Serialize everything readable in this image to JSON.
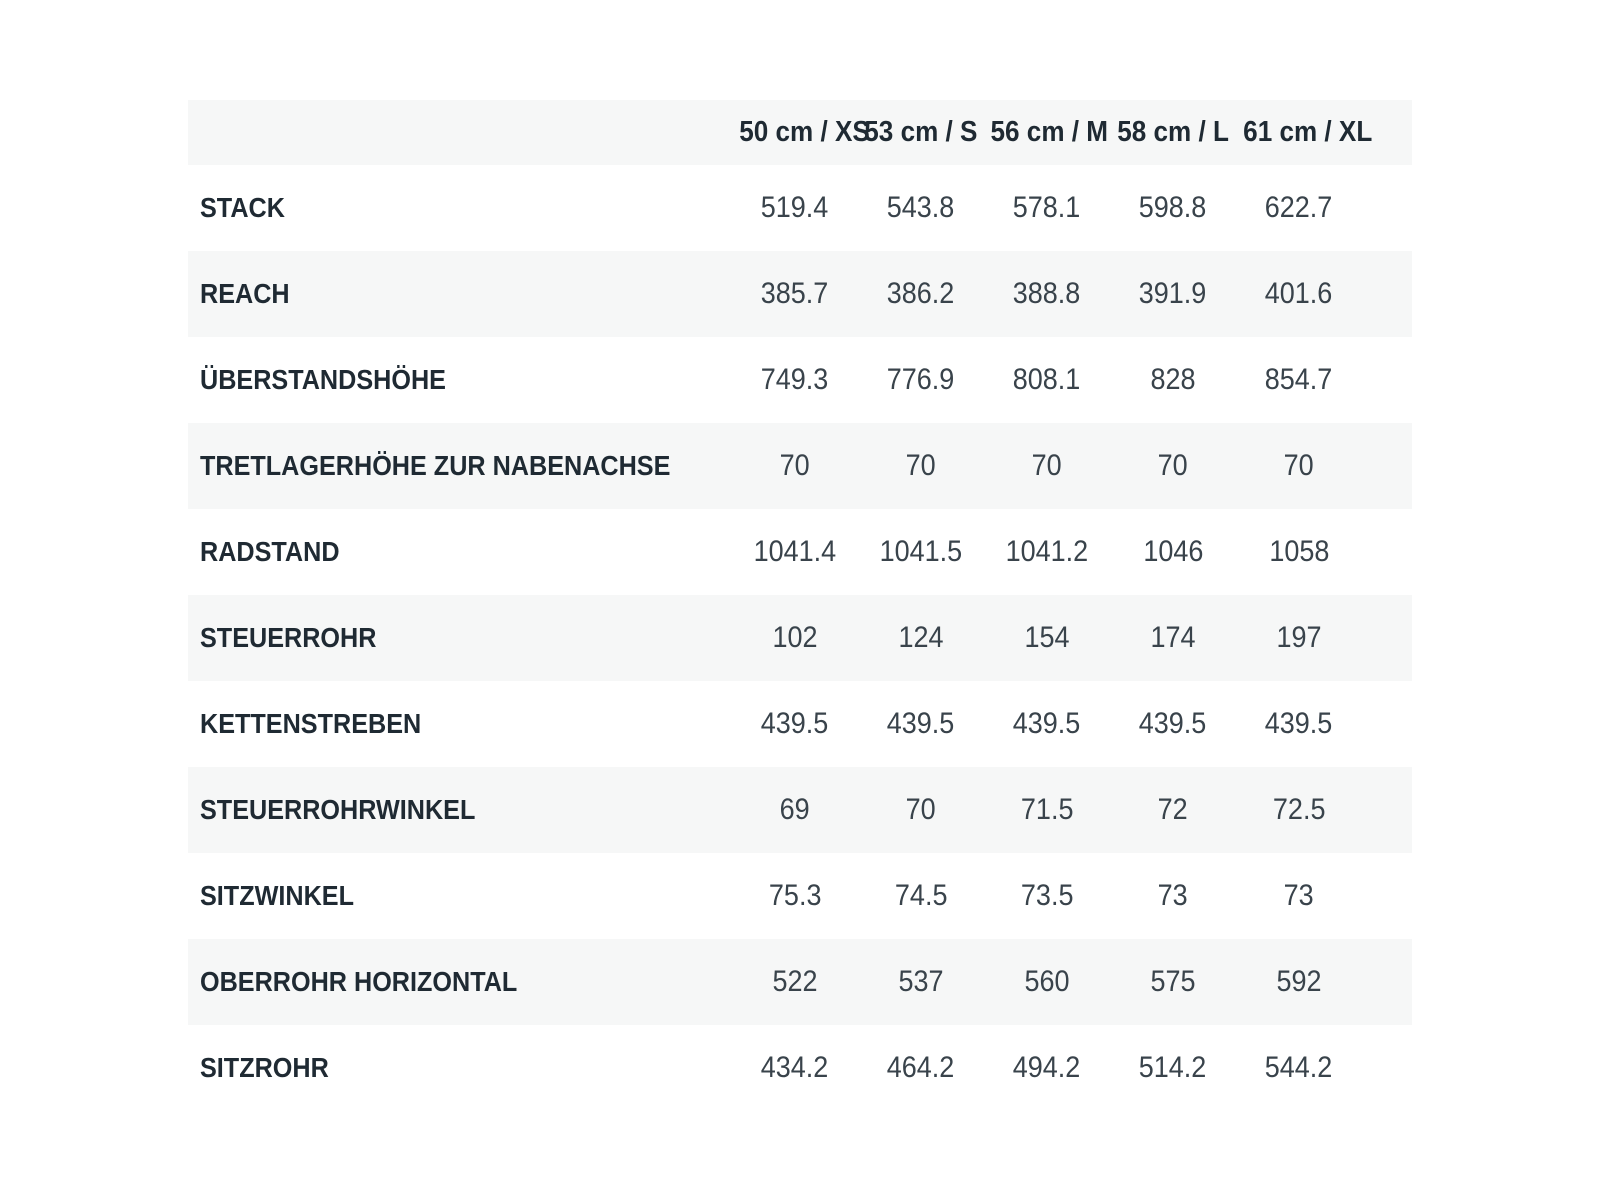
{
  "geometry_table": {
    "columns": [
      "50 cm / XS",
      "53 cm / S",
      "56 cm / M",
      "58 cm / L",
      "61 cm / XL"
    ],
    "rows": [
      {
        "label": "STACK",
        "values": [
          "519.4",
          "543.8",
          "578.1",
          "598.8",
          "622.7"
        ]
      },
      {
        "label": "REACH",
        "values": [
          "385.7",
          "386.2",
          "388.8",
          "391.9",
          "401.6"
        ]
      },
      {
        "label": "ÜBERSTANDSHÖHE",
        "values": [
          "749.3",
          "776.9",
          "808.1",
          "828",
          "854.7"
        ]
      },
      {
        "label": "TRETLAGERHÖHE ZUR NABENACHSE",
        "values": [
          "70",
          "70",
          "70",
          "70",
          "70"
        ]
      },
      {
        "label": "RADSTAND",
        "values": [
          "1041.4",
          "1041.5",
          "1041.2",
          "1046",
          "1058"
        ]
      },
      {
        "label": "STEUERROHR",
        "values": [
          "102",
          "124",
          "154",
          "174",
          "197"
        ]
      },
      {
        "label": "KETTENSTREBEN",
        "values": [
          "439.5",
          "439.5",
          "439.5",
          "439.5",
          "439.5"
        ]
      },
      {
        "label": "STEUERROHRWINKEL",
        "values": [
          "69",
          "70",
          "71.5",
          "72",
          "72.5"
        ]
      },
      {
        "label": "SITZWINKEL",
        "values": [
          "75.3",
          "74.5",
          "73.5",
          "73",
          "73"
        ]
      },
      {
        "label": "OBERROHR HORIZONTAL",
        "values": [
          "522",
          "537",
          "560",
          "575",
          "592"
        ]
      },
      {
        "label": "SITZROHR",
        "values": [
          "434.2",
          "464.2",
          "494.2",
          "514.2",
          "544.2"
        ]
      }
    ],
    "colors": {
      "background": "#ffffff",
      "stripe": "#f6f7f7",
      "label_text": "#1f2a33",
      "value_text": "#39434b"
    }
  }
}
